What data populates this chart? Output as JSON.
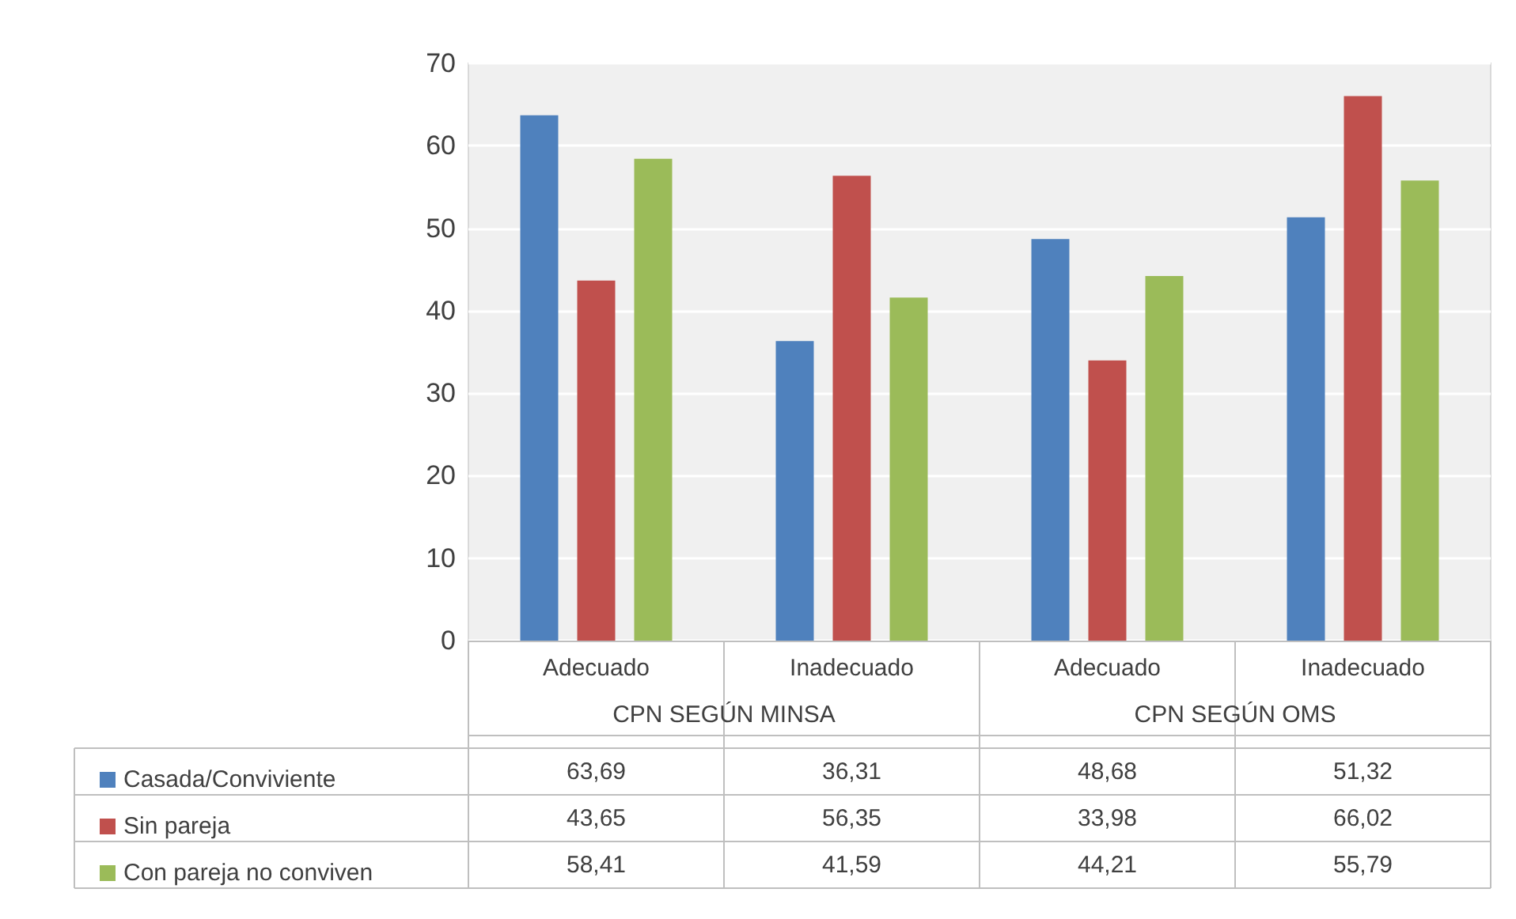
{
  "chart_data": {
    "type": "bar",
    "categories": [
      "Adecuado",
      "Inadecuado",
      "Adecuado",
      "Inadecuado"
    ],
    "annotations": [
      "CPN SEGÚN MINSA",
      "CPN SEGÚN OMS"
    ],
    "series": [
      {
        "name": "Casada/Conviviente",
        "color": "#4f81bd",
        "values": [
          63.69,
          36.31,
          48.68,
          51.32
        ],
        "value_labels": [
          "63,69",
          "36,31",
          "48,68",
          "51,32"
        ]
      },
      {
        "name": "Sin pareja",
        "color": "#c0504d",
        "values": [
          43.65,
          56.35,
          33.98,
          66.02
        ],
        "value_labels": [
          "43,65",
          "56,35",
          "33,98",
          "66,02"
        ]
      },
      {
        "name": "Con pareja no conviven",
        "color": "#9bbb59",
        "values": [
          58.41,
          41.59,
          44.21,
          55.79
        ],
        "value_labels": [
          "58,41",
          "41,59",
          "44,21",
          "55,79"
        ]
      }
    ],
    "ylim": [
      0,
      70
    ],
    "yticks": [
      0,
      10,
      20,
      30,
      40,
      50,
      60,
      70
    ],
    "grid": "y",
    "legend": "bottom"
  }
}
